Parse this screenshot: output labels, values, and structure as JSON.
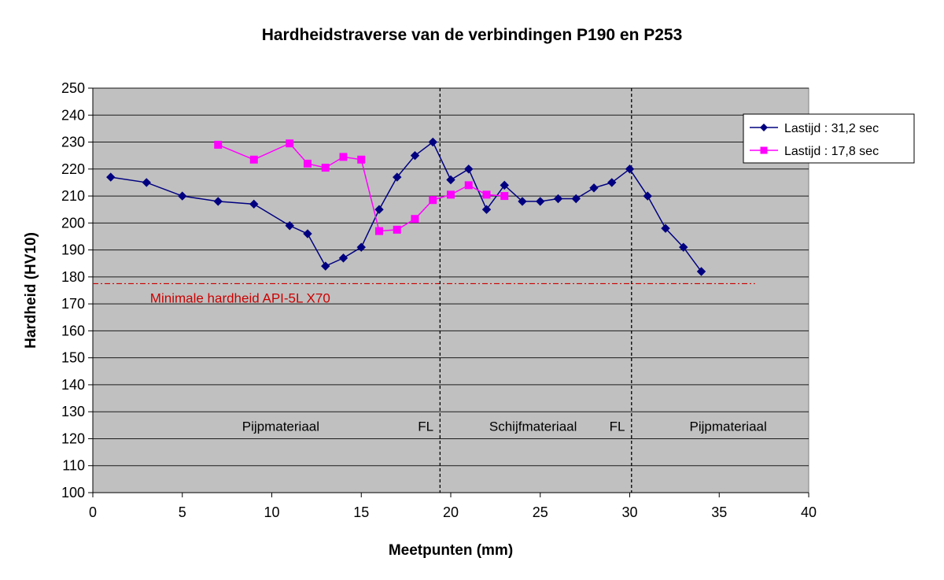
{
  "chart_data": {
    "type": "line",
    "title": "Hardheidstraverse van de verbindingen P190 en P253",
    "xlabel": "Meetpunten (mm)",
    "ylabel": "Hardheid (HV10)",
    "xlim": [
      0,
      40
    ],
    "ylim": [
      100,
      250
    ],
    "x_ticks": [
      0,
      5,
      10,
      15,
      20,
      25,
      30,
      35,
      40
    ],
    "y_ticks": [
      100,
      110,
      120,
      130,
      140,
      150,
      160,
      170,
      180,
      190,
      200,
      210,
      220,
      230,
      240,
      250
    ],
    "grid": true,
    "legend_position": "top-right",
    "plot_background": "#c0c0c0",
    "series": [
      {
        "name": "Lastijd : 31,2 sec",
        "color": "#000080",
        "marker": "diamond",
        "x": [
          1,
          3,
          5,
          7,
          9,
          11,
          12,
          13,
          14,
          15,
          16,
          17,
          18,
          19,
          20,
          21,
          22,
          23,
          24,
          25,
          26,
          27,
          28,
          29,
          30,
          31,
          32,
          33,
          34
        ],
        "y": [
          217,
          215,
          210,
          208,
          207,
          199,
          196,
          184,
          187,
          191,
          205,
          217,
          225,
          230,
          216,
          220,
          205,
          214,
          208,
          208,
          209,
          209,
          213,
          215,
          220,
          210,
          198,
          191,
          182
        ]
      },
      {
        "name": "Lastijd : 17,8 sec",
        "color": "#ff00ff",
        "marker": "square",
        "x": [
          7,
          9,
          11,
          12,
          13,
          14,
          15,
          16,
          17,
          18,
          19,
          20,
          21,
          22,
          23
        ],
        "y": [
          229,
          223.5,
          229.5,
          222,
          220.5,
          224.5,
          223.5,
          197,
          197.5,
          201.5,
          208.5,
          210.5,
          214,
          210.5,
          210
        ]
      }
    ],
    "reference_line": {
      "label": "Minimale hardheid API-5L X70",
      "y": 177.5,
      "x_range": [
        0,
        37
      ],
      "color": "#cc0000"
    },
    "vertical_lines": [
      {
        "x": 19.4,
        "label": "FL"
      },
      {
        "x": 30.1,
        "label": "FL"
      }
    ],
    "region_labels": [
      {
        "text": "Pijpmateriaal",
        "x": 10.5,
        "y": 125
      },
      {
        "text": "FL",
        "x": 18.6,
        "y": 125
      },
      {
        "text": "Schijfmateriaal",
        "x": 24.6,
        "y": 125
      },
      {
        "text": "FL",
        "x": 29.3,
        "y": 125
      },
      {
        "text": "Pijpmateriaal",
        "x": 35.5,
        "y": 125
      }
    ]
  }
}
